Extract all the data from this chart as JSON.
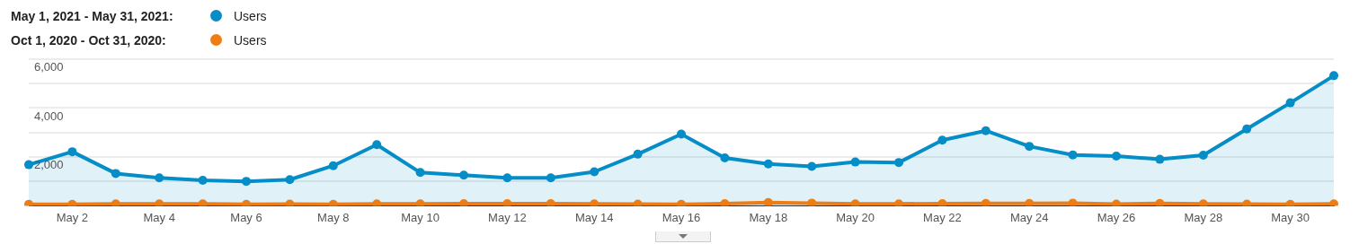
{
  "chart_data": {
    "type": "line",
    "categories": [
      null,
      "May 2",
      null,
      "May 4",
      null,
      "May 6",
      null,
      "May 8",
      null,
      "May 10",
      null,
      "May 12",
      null,
      "May 14",
      null,
      "May 16",
      null,
      "May 18",
      null,
      "May 20",
      null,
      "May 22",
      null,
      "May 24",
      null,
      "May 26",
      null,
      "May 28",
      null,
      "May 30",
      null
    ],
    "series": [
      {
        "name": "Users",
        "type": "area",
        "color": "#058dc7",
        "values": [
          1680,
          2210,
          1320,
          1140,
          1040,
          1000,
          1070,
          1640,
          2500,
          1360,
          1250,
          1140,
          1140,
          1390,
          2110,
          2930,
          1960,
          1710,
          1610,
          1790,
          1770,
          2680,
          3070,
          2430,
          2080,
          2030,
          1900,
          2070,
          3140,
          4210,
          5320
        ]
      },
      {
        "name": "Users",
        "type": "line",
        "color": "#ed7e17",
        "values": [
          60,
          60,
          80,
          80,
          80,
          60,
          70,
          60,
          80,
          80,
          90,
          90,
          90,
          80,
          70,
          60,
          90,
          130,
          110,
          80,
          80,
          90,
          100,
          100,
          110,
          70,
          100,
          80,
          70,
          60,
          80
        ]
      }
    ],
    "annotations": [
      "May 1, 2021 - May 31, 2021:",
      "Oct 1, 2020 - Oct 31, 2020:"
    ],
    "ylim": [
      0,
      6000
    ],
    "yticks": [
      {
        "value": 0,
        "label": null
      },
      {
        "value": 1000,
        "label": null
      },
      {
        "value": 2000,
        "label": "2,000"
      },
      {
        "value": 3000,
        "label": null
      },
      {
        "value": 4000,
        "label": "4,000"
      },
      {
        "value": 5000,
        "label": null
      },
      {
        "value": 6000,
        "label": "6,000"
      }
    ],
    "grid": "y",
    "legend": "top left",
    "marker": "circle",
    "line_style": "solid"
  }
}
